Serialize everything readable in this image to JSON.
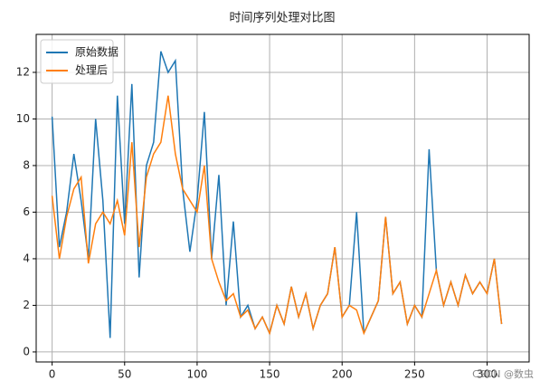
{
  "chart_data": {
    "type": "line",
    "title": "时间序列处理对比图",
    "x": [
      0,
      5,
      10,
      15,
      20,
      25,
      30,
      35,
      40,
      45,
      50,
      55,
      60,
      65,
      70,
      75,
      80,
      85,
      90,
      95,
      100,
      105,
      110,
      115,
      120,
      125,
      130,
      135,
      140,
      145,
      150,
      155,
      160,
      165,
      170,
      175,
      180,
      185,
      190,
      195,
      200,
      205,
      210,
      215,
      220,
      225,
      230,
      235,
      240,
      245,
      250,
      255,
      260,
      265,
      270,
      275,
      280,
      285,
      290,
      295,
      300,
      305,
      310
    ],
    "series": [
      {
        "name": "原始数据",
        "color": "#1f77b4",
        "values": [
          10.1,
          4.5,
          6,
          8.5,
          6.5,
          4,
          10,
          6.5,
          0.6,
          11,
          5.5,
          11.5,
          3.2,
          8,
          9,
          12.9,
          12,
          12.5,
          7,
          4.3,
          6.5,
          10.3,
          4,
          7.6,
          2,
          5.6,
          1.5,
          2,
          1,
          1.5,
          0.8,
          2,
          1.2,
          2.8,
          1.5,
          2.5,
          1,
          2,
          2.5,
          4.5,
          1.5,
          2,
          6,
          0.8,
          1.5,
          2.2,
          5.8,
          2.5,
          3,
          1.2,
          2,
          1.5,
          8.7,
          3.5,
          2,
          3,
          2,
          3.3,
          2.5,
          3,
          2.5,
          4,
          1.2
        ]
      },
      {
        "name": "处理后",
        "color": "#ff7f0e",
        "values": [
          6.7,
          4,
          5.8,
          7,
          7.5,
          3.8,
          5.5,
          6,
          5.5,
          6.5,
          5,
          9,
          4.5,
          7.5,
          8.5,
          9,
          11,
          8.5,
          7,
          6.5,
          6,
          8,
          4,
          3,
          2.2,
          2.5,
          1.5,
          1.8,
          1,
          1.5,
          0.8,
          2,
          1.2,
          2.8,
          1.5,
          2.5,
          1,
          2,
          2.5,
          4.5,
          1.5,
          2,
          1.8,
          0.8,
          1.5,
          2.2,
          5.8,
          2.5,
          3,
          1.2,
          2,
          1.5,
          2.5,
          3.5,
          2,
          3,
          2,
          3.3,
          2.5,
          3,
          2.5,
          4,
          1.2
        ]
      }
    ],
    "xlim": [
      -11,
      329
    ],
    "ylim": [
      -0.43,
      13.63
    ],
    "xticks": [
      0,
      50,
      100,
      150,
      200,
      250,
      300
    ],
    "yticks": [
      0,
      2,
      4,
      6,
      8,
      10,
      12
    ],
    "grid": true,
    "legend": "upper left",
    "watermark": "CSDN @数虫"
  }
}
